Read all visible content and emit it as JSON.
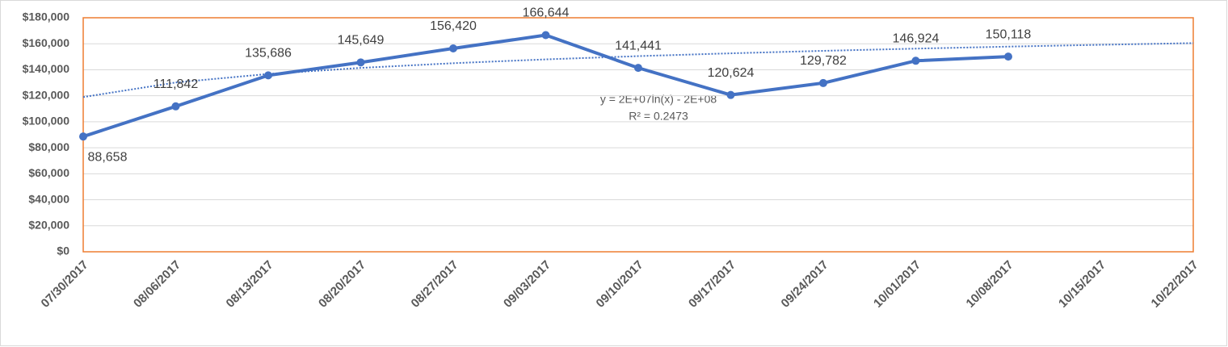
{
  "chart_data": {
    "type": "line",
    "categories": [
      "07/30/2017",
      "08/06/2017",
      "08/13/2017",
      "08/20/2017",
      "08/27/2017",
      "09/03/2017",
      "09/10/2017",
      "09/17/2017",
      "09/24/2017",
      "10/01/2017",
      "10/08/2017",
      "10/15/2017",
      "10/22/2017"
    ],
    "series": [
      {
        "color": "#4472c4",
        "values": [
          88658,
          111842,
          135686,
          145649,
          156420,
          166644,
          141441,
          120624,
          129782,
          146924,
          150118,
          null,
          null
        ],
        "value_labels": [
          "88,658",
          "111,842",
          "135,686",
          "145,649",
          "156,420",
          "166,644",
          "141,441",
          "120,624",
          "129,782",
          "146,924",
          "150,118",
          null,
          null
        ]
      }
    ],
    "trendline": {
      "color": "#4472c4",
      "values": [
        119000,
        130214,
        136775,
        141430,
        145040,
        147990,
        150485,
        152645,
        154550,
        156255,
        157800,
        159205,
        160500
      ]
    },
    "annotations": [
      "y = 2E+07ln(x) - 2E+08",
      "R² = 0.2473"
    ],
    "ylim": [
      0,
      180000
    ],
    "yticks": [
      {
        "value": 0,
        "label": "$0"
      },
      {
        "value": 20000,
        "label": "$20,000"
      },
      {
        "value": 40000,
        "label": "$40,000"
      },
      {
        "value": 60000,
        "label": "$60,000"
      },
      {
        "value": 80000,
        "label": "$80,000"
      },
      {
        "value": 100000,
        "label": "$100,000"
      },
      {
        "value": 120000,
        "label": "$120,000"
      },
      {
        "value": 140000,
        "label": "$140,000"
      },
      {
        "value": 160000,
        "label": "$160,000"
      },
      {
        "value": 180000,
        "label": "$180,000"
      }
    ],
    "grid": true,
    "border_color": "#ed7d31"
  }
}
